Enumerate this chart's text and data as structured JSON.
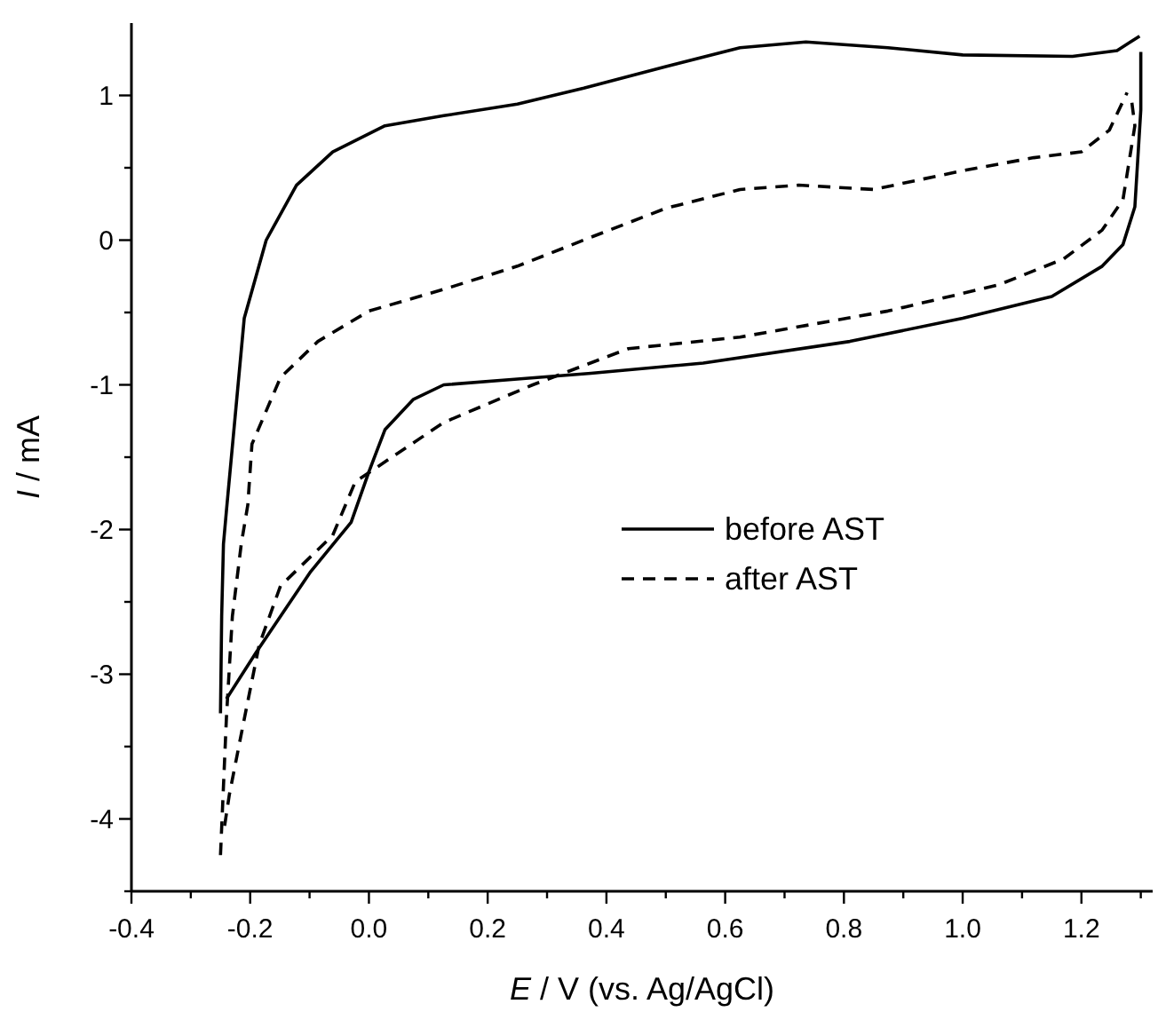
{
  "chart_data": {
    "type": "line",
    "xlabel": "E / V (vs. Ag/AgCl)",
    "ylabel": "I / mA",
    "xlim": [
      -0.4,
      1.32
    ],
    "ylim": [
      -4.5,
      1.5
    ],
    "xticks": [
      {
        "value": -0.4,
        "label": "-0.4"
      },
      {
        "value": -0.3,
        "label": null
      },
      {
        "value": -0.2,
        "label": "-0.2"
      },
      {
        "value": -0.1,
        "label": null
      },
      {
        "value": 0,
        "label": "0.0"
      },
      {
        "value": 0.1,
        "label": null
      },
      {
        "value": 0.2,
        "label": "0.2"
      },
      {
        "value": 0.3,
        "label": null
      },
      {
        "value": 0.4,
        "label": "0.4"
      },
      {
        "value": 0.5,
        "label": null
      },
      {
        "value": 0.6,
        "label": "0.6"
      },
      {
        "value": 0.7,
        "label": null
      },
      {
        "value": 0.8,
        "label": "0.8"
      },
      {
        "value": 0.9,
        "label": null
      },
      {
        "value": 1.0,
        "label": "1.0"
      },
      {
        "value": 1.1,
        "label": null
      },
      {
        "value": 1.2,
        "label": "1.2"
      },
      {
        "value": 1.3,
        "label": null
      }
    ],
    "yticks": [
      {
        "value": -4.5,
        "label": null
      },
      -4,
      {
        "value": -3.5,
        "label": null
      },
      -3,
      {
        "value": -2.5,
        "label": null
      },
      -2,
      {
        "value": -1.5,
        "label": null
      },
      -1,
      {
        "value": -0.5,
        "label": null
      },
      0,
      {
        "value": 0.5,
        "label": null
      },
      1
    ],
    "grid": false,
    "legend": "right",
    "marker": "none",
    "series": [
      {
        "name": "before AST",
        "color": "#000000",
        "line_style": "solid",
        "x": [
          -0.25,
          -0.248,
          -0.245,
          -0.24,
          -0.21,
          -0.173,
          -0.122,
          -0.061,
          0.027,
          0.126,
          0.25,
          0.362,
          0.5,
          0.625,
          0.736,
          0.874,
          1.0,
          1.185,
          1.26,
          1.298
        ],
        "values": [
          -3.27,
          -2.6,
          -2.1,
          -1.87,
          -0.54,
          0.0,
          0.38,
          0.61,
          0.79,
          0.86,
          0.94,
          1.05,
          1.2,
          1.33,
          1.37,
          1.33,
          1.28,
          1.27,
          1.31,
          1.41
        ]
      },
      {
        "color": "#000000",
        "line_style": "solid",
        "x": [
          1.3,
          1.3,
          1.29,
          1.27,
          1.235,
          1.15,
          1.0,
          0.81,
          0.563,
          0.374,
          0.25,
          0.126,
          0.075,
          0.027,
          0.0,
          -0.03,
          -0.098,
          -0.19,
          -0.24
        ],
        "values": [
          1.3,
          0.9,
          0.23,
          -0.03,
          -0.18,
          -0.39,
          -0.54,
          -0.7,
          -0.85,
          -0.92,
          -0.96,
          -1.0,
          -1.1,
          -1.31,
          -1.6,
          -1.95,
          -2.29,
          -2.85,
          -3.17
        ]
      },
      {
        "name": "after AST",
        "color": "#000000",
        "line_style": "dashed",
        "x": [
          -0.25,
          -0.24,
          -0.23,
          -0.215,
          -0.204,
          -0.197,
          -0.149,
          -0.086,
          0.0,
          0.126,
          0.25,
          0.374,
          0.5,
          0.625,
          0.724,
          0.85,
          1.0,
          1.12,
          1.2,
          1.247,
          1.277
        ],
        "values": [
          -4.25,
          -3.3,
          -2.6,
          -2.1,
          -1.83,
          -1.41,
          -0.95,
          -0.7,
          -0.49,
          -0.34,
          -0.18,
          0.02,
          0.22,
          0.35,
          0.38,
          0.35,
          0.48,
          0.57,
          0.61,
          0.76,
          1.02
        ]
      },
      {
        "color": "#000000",
        "line_style": "dashed",
        "x": [
          1.285,
          1.29,
          1.27,
          1.235,
          1.17,
          1.06,
          0.874,
          0.625,
          0.437,
          0.276,
          0.126,
          -0.023,
          -0.061,
          -0.149,
          -0.185,
          -0.21,
          -0.235,
          -0.245
        ],
        "values": [
          0.95,
          0.79,
          0.28,
          0.07,
          -0.13,
          -0.31,
          -0.49,
          -0.67,
          -0.75,
          -1.0,
          -1.26,
          -1.67,
          -2.04,
          -2.39,
          -2.8,
          -3.31,
          -3.83,
          -4.1
        ]
      }
    ]
  }
}
